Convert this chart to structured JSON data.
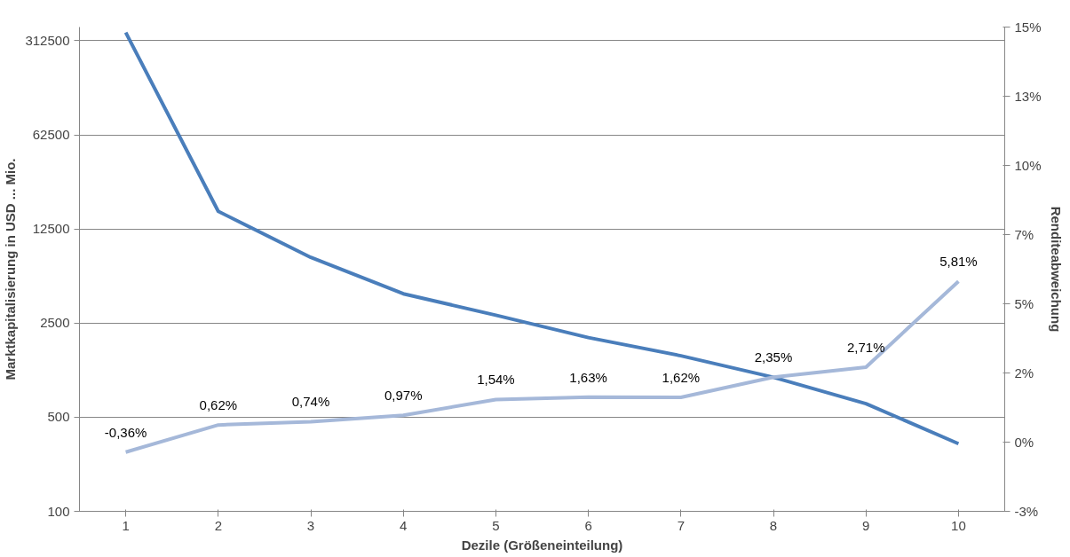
{
  "chart_data": {
    "type": "line",
    "categories": [
      "1",
      "2",
      "3",
      "4",
      "5",
      "6",
      "7",
      "8",
      "9",
      "10"
    ],
    "xlabel": "Dezile (Größeneinteilung)",
    "ylabel": "Marktkapitalisierung in USD ... Mio.",
    "y2label": "Renditeabweichung",
    "log": "y",
    "ylim": [
      100,
      395000
    ],
    "yticks": [
      100,
      500,
      2500,
      12500,
      62500,
      312500
    ],
    "y2lim": [
      -2.5,
      15
    ],
    "y2ticks": [
      {
        "value": -2.5,
        "label": "-3%"
      },
      {
        "value": 0,
        "label": "0%"
      },
      {
        "value": 2.5,
        "label": "2%"
      },
      {
        "value": 5,
        "label": "5%"
      },
      {
        "value": 7.5,
        "label": "7%"
      },
      {
        "value": 10,
        "label": "10%"
      },
      {
        "value": 12.5,
        "label": "13%"
      },
      {
        "value": 15,
        "label": "15%"
      }
    ],
    "grid": "y",
    "series": [
      {
        "color": "#4a7ebb",
        "values": [
          360000,
          16900,
          7690,
          4130,
          2860,
          1950,
          1430,
          990,
          630,
          318
        ]
      },
      {
        "color": "#a5b8d9",
        "axis": "y2",
        "values": [
          -0.36,
          0.62,
          0.74,
          0.97,
          1.54,
          1.63,
          1.62,
          2.35,
          2.71,
          5.81
        ],
        "value_labels": [
          "-0,36%",
          "0,62%",
          "0,74%",
          "0,97%",
          "1,54%",
          "1,63%",
          "1,62%",
          "2,35%",
          "2,71%",
          "5,81%"
        ]
      }
    ]
  }
}
